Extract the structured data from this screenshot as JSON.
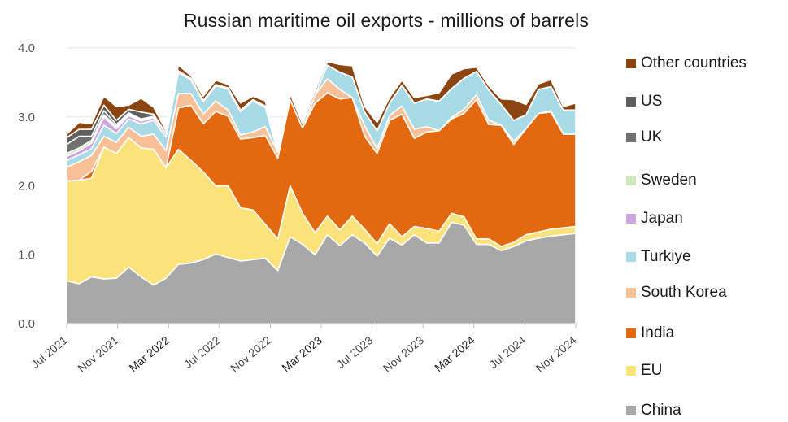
{
  "chart_data": {
    "type": "area",
    "stacked": true,
    "title": "Russian maritime oil exports - millions of barrels",
    "xlabel": "",
    "ylabel": "",
    "ylim": [
      0,
      4
    ],
    "yticks": [
      "0.0",
      "1.0",
      "2.0",
      "3.0",
      "4.0"
    ],
    "grid": "horizontal",
    "legend_position": "right",
    "xtick_labels": [
      "Jul 2021",
      "Nov 2021",
      "Mar 2022",
      "Jul 2022",
      "Nov 2022",
      "Mar 2023",
      "Jul 2023",
      "Nov 2023",
      "Mar 2024",
      "Jul 2024",
      "Nov 2024"
    ],
    "x": [
      "2021-07",
      "2021-08",
      "2021-09",
      "2021-10",
      "2021-11",
      "2021-12",
      "2022-01",
      "2022-02",
      "2022-03",
      "2022-04",
      "2022-05",
      "2022-06",
      "2022-07",
      "2022-08",
      "2022-09",
      "2022-10",
      "2022-11",
      "2022-12",
      "2023-01",
      "2023-02",
      "2023-03",
      "2023-04",
      "2023-05",
      "2023-06",
      "2023-07",
      "2023-08",
      "2023-09",
      "2023-10",
      "2023-11",
      "2023-12",
      "2024-01",
      "2024-02",
      "2024-03",
      "2024-04",
      "2024-05",
      "2024-06",
      "2024-07",
      "2024-08",
      "2024-09",
      "2024-10",
      "2024-11",
      "2024-12"
    ],
    "series": [
      {
        "name": "China",
        "color": "#a8a8a8",
        "values": [
          0.62,
          0.58,
          0.68,
          0.65,
          0.66,
          0.82,
          0.68,
          0.56,
          0.66,
          0.86,
          0.88,
          0.93,
          1.01,
          0.96,
          0.91,
          0.93,
          0.95,
          0.77,
          1.26,
          1.15,
          1.0,
          1.29,
          1.13,
          1.29,
          1.17,
          0.98,
          1.24,
          1.14,
          1.29,
          1.17,
          1.17,
          1.47,
          1.43,
          1.15,
          1.15,
          1.06,
          1.12,
          1.2,
          1.24,
          1.27,
          1.29,
          1.31
        ]
      },
      {
        "name": "EU",
        "color": "#fce27a",
        "values": [
          1.45,
          1.5,
          1.43,
          1.91,
          1.81,
          1.88,
          1.87,
          1.97,
          1.6,
          1.67,
          1.49,
          1.27,
          0.99,
          1.04,
          0.77,
          0.72,
          0.49,
          0.46,
          0.74,
          0.45,
          0.32,
          0.27,
          0.23,
          0.27,
          0.2,
          0.18,
          0.21,
          0.12,
          0.12,
          0.21,
          0.17,
          0.13,
          0.12,
          0.08,
          0.08,
          0.06,
          0.06,
          0.09,
          0.09,
          0.1,
          0.1,
          0.1
        ]
      },
      {
        "name": "India",
        "color": "#e2690f",
        "values": [
          0.0,
          0.0,
          0.1,
          0.0,
          0.0,
          0.0,
          0.0,
          0.0,
          0.0,
          0.6,
          0.8,
          0.7,
          1.08,
          1.01,
          1.0,
          1.05,
          1.29,
          1.17,
          1.25,
          1.24,
          1.88,
          1.79,
          1.9,
          1.72,
          1.35,
          1.31,
          1.5,
          1.78,
          1.28,
          1.4,
          1.46,
          1.37,
          1.5,
          2.02,
          1.66,
          1.76,
          1.42,
          1.54,
          1.72,
          1.7,
          1.36,
          1.34
        ]
      },
      {
        "name": "South Korea",
        "color": "#f8c096",
        "values": [
          0.2,
          0.27,
          0.23,
          0.16,
          0.16,
          0.15,
          0.17,
          0.22,
          0.25,
          0.21,
          0.17,
          0.14,
          0.15,
          0.09,
          0.06,
          0.08,
          0.13,
          0.09,
          0.0,
          0.0,
          0.12,
          0.2,
          0.14,
          0.0,
          0.15,
          0.07,
          0.07,
          0.12,
          0.13,
          0.08,
          0.0,
          0.02,
          0.06,
          0.07,
          0.06,
          0.0,
          0.05,
          0.0,
          0.0,
          0.02,
          0.0,
          0.0
        ]
      },
      {
        "name": "Turkiye",
        "color": "#a8dbe6",
        "values": [
          0.1,
          0.1,
          0.1,
          0.16,
          0.13,
          0.12,
          0.18,
          0.2,
          0.2,
          0.3,
          0.2,
          0.18,
          0.22,
          0.3,
          0.34,
          0.45,
          0.28,
          0.0,
          0.0,
          0.0,
          0.0,
          0.2,
          0.25,
          0.3,
          0.2,
          0.26,
          0.18,
          0.3,
          0.38,
          0.4,
          0.43,
          0.42,
          0.45,
          0.34,
          0.44,
          0.3,
          0.3,
          0.2,
          0.35,
          0.35,
          0.35,
          0.35
        ]
      },
      {
        "name": "Japan",
        "color": "#cda6e0",
        "values": [
          0.06,
          0.06,
          0.08,
          0.12,
          0.07,
          0.05,
          0.04,
          0.04,
          0.05,
          0.03,
          0.02,
          0.02,
          0.02,
          0.02,
          0.02,
          0.02,
          0.02,
          0.0,
          0.0,
          0.0,
          0.0,
          0.0,
          0.0,
          0.0,
          0.0,
          0.0,
          0.0,
          0.0,
          0.0,
          0.0,
          0.0,
          0.0,
          0.0,
          0.0,
          0.0,
          0.0,
          0.0,
          0.0,
          0.0,
          0.0,
          0.0,
          0.0
        ]
      },
      {
        "name": "Sweden",
        "color": "#cde8bc",
        "values": [
          0.04,
          0.04,
          0.04,
          0.03,
          0.03,
          0.02,
          0.01,
          0.01,
          0.0,
          0.0,
          0.0,
          0.0,
          0.0,
          0.0,
          0.0,
          0.0,
          0.0,
          0.0,
          0.0,
          0.0,
          0.0,
          0.0,
          0.0,
          0.0,
          0.0,
          0.0,
          0.0,
          0.0,
          0.0,
          0.0,
          0.0,
          0.0,
          0.0,
          0.0,
          0.0,
          0.0,
          0.0,
          0.0,
          0.0,
          0.0,
          0.0,
          0.0
        ]
      },
      {
        "name": "UK",
        "color": "#707070",
        "values": [
          0.13,
          0.17,
          0.06,
          0.06,
          0.03,
          0.02,
          0.02,
          0.01,
          0.0,
          0.0,
          0.0,
          0.0,
          0.0,
          0.0,
          0.0,
          0.0,
          0.0,
          0.0,
          0.0,
          0.0,
          0.0,
          0.0,
          0.0,
          0.0,
          0.0,
          0.0,
          0.0,
          0.0,
          0.0,
          0.0,
          0.0,
          0.0,
          0.0,
          0.0,
          0.0,
          0.0,
          0.0,
          0.0,
          0.0,
          0.0,
          0.0,
          0.0
        ]
      },
      {
        "name": "US",
        "color": "#5f5f5f",
        "values": [
          0.1,
          0.1,
          0.1,
          0.08,
          0.06,
          0.05,
          0.1,
          0.03,
          0.0,
          0.0,
          0.0,
          0.0,
          0.0,
          0.0,
          0.0,
          0.0,
          0.0,
          0.0,
          0.0,
          0.0,
          0.0,
          0.0,
          0.0,
          0.0,
          0.0,
          0.0,
          0.0,
          0.0,
          0.0,
          0.0,
          0.0,
          0.0,
          0.0,
          0.0,
          0.0,
          0.0,
          0.0,
          0.0,
          0.0,
          0.0,
          0.0,
          0.0
        ]
      },
      {
        "name": "Other countries",
        "color": "#8b4512",
        "values": [
          0.05,
          0.1,
          0.08,
          0.13,
          0.2,
          0.06,
          0.2,
          0.1,
          0.04,
          0.08,
          0.04,
          0.06,
          0.06,
          0.05,
          0.1,
          0.05,
          0.07,
          0.04,
          0.08,
          0.06,
          0.06,
          0.05,
          0.11,
          0.16,
          0.08,
          0.12,
          0.08,
          0.07,
          0.08,
          0.05,
          0.12,
          0.21,
          0.14,
          0.06,
          0.06,
          0.08,
          0.3,
          0.15,
          0.08,
          0.1,
          0.05,
          0.1
        ]
      }
    ]
  }
}
